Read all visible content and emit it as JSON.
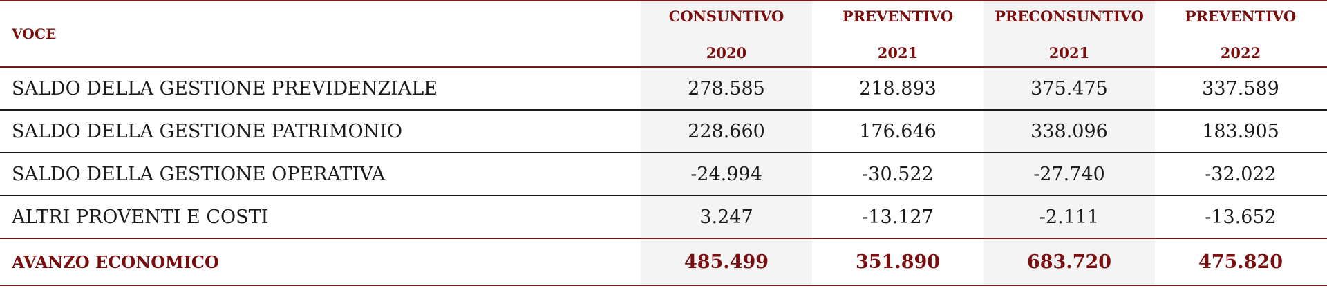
{
  "header": {
    "voce": "VOCE",
    "columns": [
      {
        "line1": "CONSUNTIVO",
        "line2": "2020"
      },
      {
        "line1": "PREVENTIVO",
        "line2": "2021"
      },
      {
        "line1": "PRECONSUNTIVO",
        "line2": "2021"
      },
      {
        "line1": "PREVENTIVO",
        "line2": "2022"
      }
    ]
  },
  "rows": [
    {
      "label": "SALDO DELLA GESTIONE PREVIDENZIALE",
      "values": [
        "278.585",
        "218.893",
        "375.475",
        "337.589"
      ]
    },
    {
      "label": "SALDO DELLA GESTIONE PATRIMONIO",
      "values": [
        "228.660",
        "176.646",
        "338.096",
        "183.905"
      ]
    },
    {
      "label": "SALDO DELLA GESTIONE OPERATIVA",
      "values": [
        "-24.994",
        "-30.522",
        "-27.740",
        "-32.022"
      ]
    },
    {
      "label": "ALTRI PROVENTI E COSTI",
      "values": [
        "3.247",
        "-13.127",
        "-2.111",
        "-13.652"
      ]
    }
  ],
  "total": {
    "label": "AVANZO ECONOMICO",
    "values": [
      "485.499",
      "351.890",
      "683.720",
      "475.820"
    ]
  },
  "colors": {
    "accent": "#7a0d0d",
    "text": "#1a1a1a",
    "shade": "#f3f4f3"
  }
}
